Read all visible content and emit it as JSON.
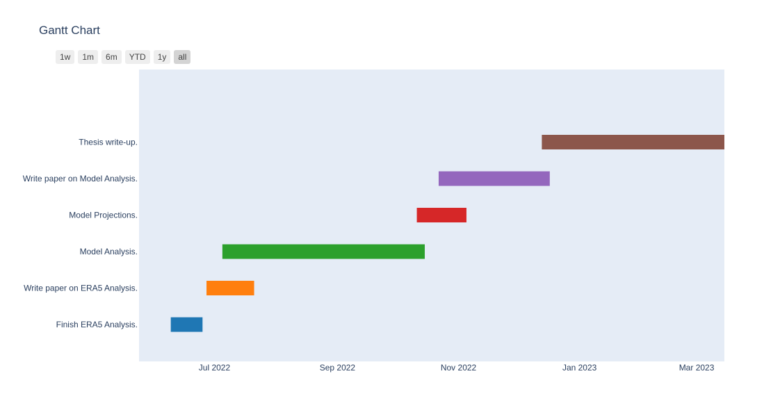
{
  "chart_data": {
    "type": "gantt",
    "title": "Gantt Chart",
    "range_selector": {
      "buttons": [
        "1w",
        "1m",
        "6m",
        "YTD",
        "1y",
        "all"
      ],
      "active": "all"
    },
    "x_axis": {
      "type": "date",
      "range": [
        "2022-05-24",
        "2023-03-15"
      ],
      "ticks": [
        {
          "date": "2022-07-01",
          "label": "Jul 2022"
        },
        {
          "date": "2022-09-01",
          "label": "Sep 2022"
        },
        {
          "date": "2022-11-01",
          "label": "Nov 2022"
        },
        {
          "date": "2023-01-01",
          "label": "Jan 2023"
        },
        {
          "date": "2023-03-01",
          "label": "Mar 2023"
        }
      ]
    },
    "tasks": [
      {
        "task": "Finish ERA5 Analysis.",
        "start": "2022-06-09",
        "finish": "2022-06-25",
        "color": "#1f77b4"
      },
      {
        "task": "Write paper on ERA5 Analysis.",
        "start": "2022-06-27",
        "finish": "2022-07-21",
        "color": "#ff7f0e"
      },
      {
        "task": "Model Analysis.",
        "start": "2022-07-05",
        "finish": "2022-10-15",
        "color": "#2ca02c"
      },
      {
        "task": "Model Projections.",
        "start": "2022-10-11",
        "finish": "2022-11-05",
        "color": "#d62728"
      },
      {
        "task": "Write paper on Model Analysis.",
        "start": "2022-10-22",
        "finish": "2022-12-17",
        "color": "#9467bd"
      },
      {
        "task": "Thesis write-up.",
        "start": "2022-12-13",
        "finish": "2023-03-16",
        "color": "#8c564b"
      }
    ],
    "plot_background": "#e5ecf6",
    "grid": false,
    "legend": "none"
  }
}
